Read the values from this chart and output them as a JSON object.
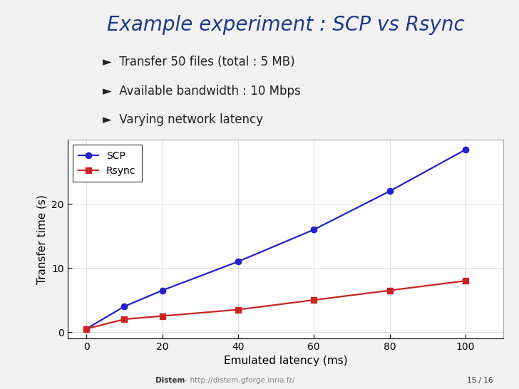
{
  "title": "Example experiment : SCP vs Rsync",
  "title_color": "#1a3a8a",
  "title_fontsize": 20,
  "bullets": [
    "Transfer 50 files (total : 5 MB)",
    "Available bandwidth : 10 Mbps",
    "Varying network latency"
  ],
  "bullet_fontsize": 12,
  "bullet_color": "#222222",
  "scp_x": [
    0,
    10,
    20,
    40,
    60,
    80,
    100
  ],
  "scp_y": [
    0.5,
    4.0,
    6.5,
    11.0,
    16.0,
    22.0,
    28.5
  ],
  "rsync_x": [
    0,
    10,
    20,
    40,
    60,
    80,
    100
  ],
  "rsync_y": [
    0.5,
    2.0,
    2.5,
    3.5,
    5.0,
    6.5,
    8.0
  ],
  "scp_color": "#2222cc",
  "rsync_color": "#cc2222",
  "xlabel": "Emulated latency (ms)",
  "ylabel": "Transfer time (s)",
  "xlabel_fontsize": 11,
  "ylabel_fontsize": 11,
  "xlim": [
    -5,
    110
  ],
  "ylim": [
    -1,
    30
  ],
  "yticks": [
    0,
    10,
    20
  ],
  "xticks": [
    0,
    20,
    40,
    60,
    80,
    100
  ],
  "legend_labels": [
    "SCP",
    "Rsync"
  ],
  "background_color": "#f2f2f2",
  "plot_background": "#ffffff",
  "footer_bold": "Distem",
  "footer_url": "http://distem.gforge.inria.fr/",
  "footer_page": "15 / 16"
}
